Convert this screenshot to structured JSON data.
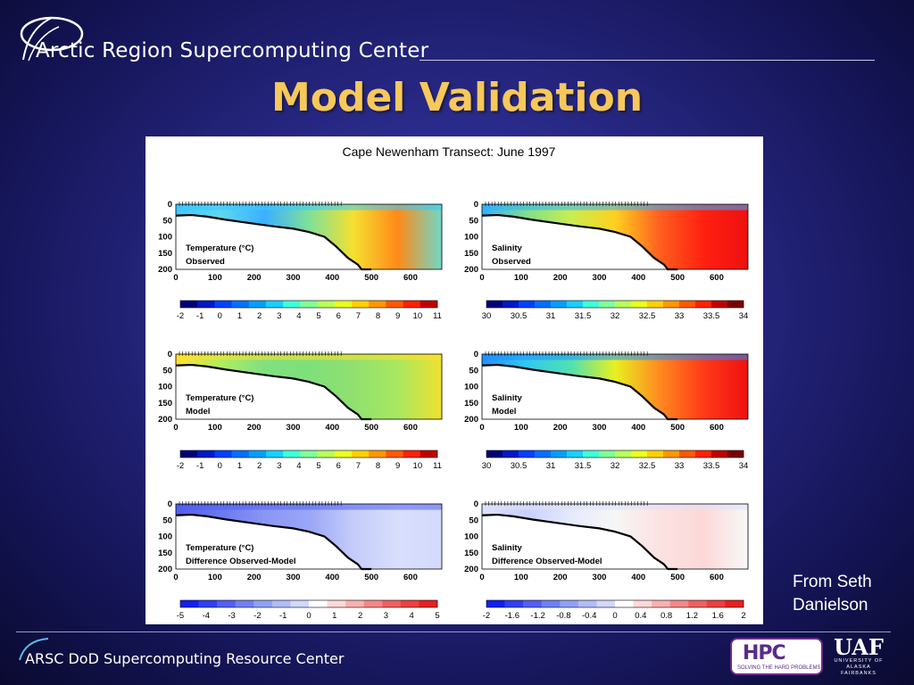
{
  "header": {
    "org_name": "Arctic Region Supercomputing Center"
  },
  "slide": {
    "title": "Model Validation",
    "credit_line1": "From Seth",
    "credit_line2": "Danielson"
  },
  "footer": {
    "text": "ARSC DoD Supercomputing Resource Center",
    "hpc_mark": "HPC",
    "hpc_tag": "SOLVING THE HARD PROBLEMS",
    "uaf_mark": "UAF",
    "uaf_sub": "UNIVERSITY OF ALASKA FAIRBANKS"
  },
  "chart_data": {
    "type": "heatmap",
    "title": "Cape Newenham Transect: June 1997",
    "x_ticks": [
      "0",
      "100",
      "200",
      "300",
      "400",
      "500",
      "600"
    ],
    "xlim": [
      0,
      680
    ],
    "y_ticks": [
      "0",
      "50",
      "100",
      "150",
      "200"
    ],
    "ylim": [
      0,
      200
    ],
    "bathymetry": {
      "x": [
        0,
        40,
        80,
        130,
        190,
        250,
        300,
        340,
        380,
        410,
        440,
        465,
        475,
        500
      ],
      "depth": [
        35,
        33,
        38,
        48,
        58,
        68,
        75,
        85,
        100,
        130,
        165,
        185,
        200,
        200
      ]
    },
    "panels": [
      {
        "label1": "Temperature (°C)",
        "label2": "Observed",
        "scale": "temperature",
        "color_stops": [
          "#3dc8ff",
          "#5ed8ee",
          "#3ab0ff",
          "#7fe09a",
          "#f5e030",
          "#ff8a18",
          "#6fd8c8"
        ]
      },
      {
        "label1": "Salinity",
        "label2": "Observed",
        "scale": "salinity",
        "color_stops": [
          "#30b0ff",
          "#7fe08a",
          "#c8ee50",
          "#ffd020",
          "#ff6020",
          "#ff2010",
          "#ee1010"
        ]
      },
      {
        "label1": "Temperature (°C)",
        "label2": "Model",
        "scale": "temperature",
        "color_stops": [
          "#ffe030",
          "#b0ee60",
          "#80e080",
          "#7ee07a",
          "#90e070",
          "#a8e860",
          "#f0e030"
        ]
      },
      {
        "label1": "Salinity",
        "label2": "Model",
        "scale": "salinity",
        "color_stops": [
          "#2090ff",
          "#30c8f0",
          "#50e0b0",
          "#e8f020",
          "#ff8a20",
          "#ff3a18",
          "#ee1010"
        ]
      },
      {
        "label1": "Temperature (°C)",
        "label2": "Difference Observed-Model",
        "scale": "temperature_diff",
        "color_stops": [
          "#5060ee",
          "#6a78f0",
          "#8a96f4",
          "#9aa6f6",
          "#c4ccfa",
          "#d8defc",
          "#d4dafc"
        ]
      },
      {
        "label1": "Salinity",
        "label2": "Difference Observed-Model",
        "scale": "salinity_diff",
        "color_stops": [
          "#dde2fc",
          "#c8d0fa",
          "#e6eafd",
          "#f6f6f6",
          "#fde2e2",
          "#fcd8d8",
          "#f8f8f8"
        ]
      }
    ],
    "colorbars": {
      "temperature": {
        "min": -2,
        "max": 11,
        "ticks": [
          "-2",
          "-1",
          "0",
          "1",
          "2",
          "3",
          "4",
          "5",
          "6",
          "7",
          "8",
          "9",
          "10",
          "11"
        ],
        "colors": [
          "#00007a",
          "#0018c8",
          "#0040ff",
          "#0070ff",
          "#00a0ff",
          "#18d0ff",
          "#40ffd8",
          "#80ff98",
          "#b8ff58",
          "#e8ff20",
          "#ffd000",
          "#ff9800",
          "#ff5800",
          "#ff2000",
          "#c00000"
        ]
      },
      "salinity": {
        "min": 30,
        "max": 34,
        "ticks": [
          "30",
          "30.5",
          "31",
          "31.5",
          "32",
          "32.5",
          "33",
          "33.5",
          "34"
        ],
        "colors": [
          "#00007a",
          "#0018c8",
          "#0040ff",
          "#0070ff",
          "#00a0ff",
          "#18d0ff",
          "#40ffd8",
          "#80ff98",
          "#b8ff58",
          "#e8ff20",
          "#ffd000",
          "#ff9800",
          "#ff5800",
          "#ff2000",
          "#c00000",
          "#7a0000"
        ]
      },
      "temperature_diff": {
        "min": -5,
        "max": 5,
        "ticks": [
          "-5",
          "-4",
          "-3",
          "-2",
          "-1",
          "0",
          "1",
          "2",
          "3",
          "4",
          "5"
        ],
        "colors": [
          "#1020ee",
          "#3040f0",
          "#5060f2",
          "#7080f4",
          "#90a0f6",
          "#b0bcf8",
          "#d0d8fc",
          "#ffffff",
          "#fcd8d8",
          "#f8b0b0",
          "#f48888",
          "#f06060",
          "#ec4040",
          "#e82020"
        ]
      },
      "salinity_diff": {
        "min": -2,
        "max": 2,
        "ticks": [
          "-2",
          "-1.6",
          "-1.2",
          "-0.8",
          "-0.4",
          "0",
          "0.4",
          "0.8",
          "1.2",
          "1.6",
          "2"
        ],
        "colors": [
          "#1020ee",
          "#3040f0",
          "#5060f2",
          "#7080f4",
          "#90a0f6",
          "#b0bcf8",
          "#d0d8fc",
          "#ffffff",
          "#fcd8d8",
          "#f8b0b0",
          "#f48888",
          "#f06060",
          "#ec4040",
          "#e82020"
        ]
      }
    }
  }
}
